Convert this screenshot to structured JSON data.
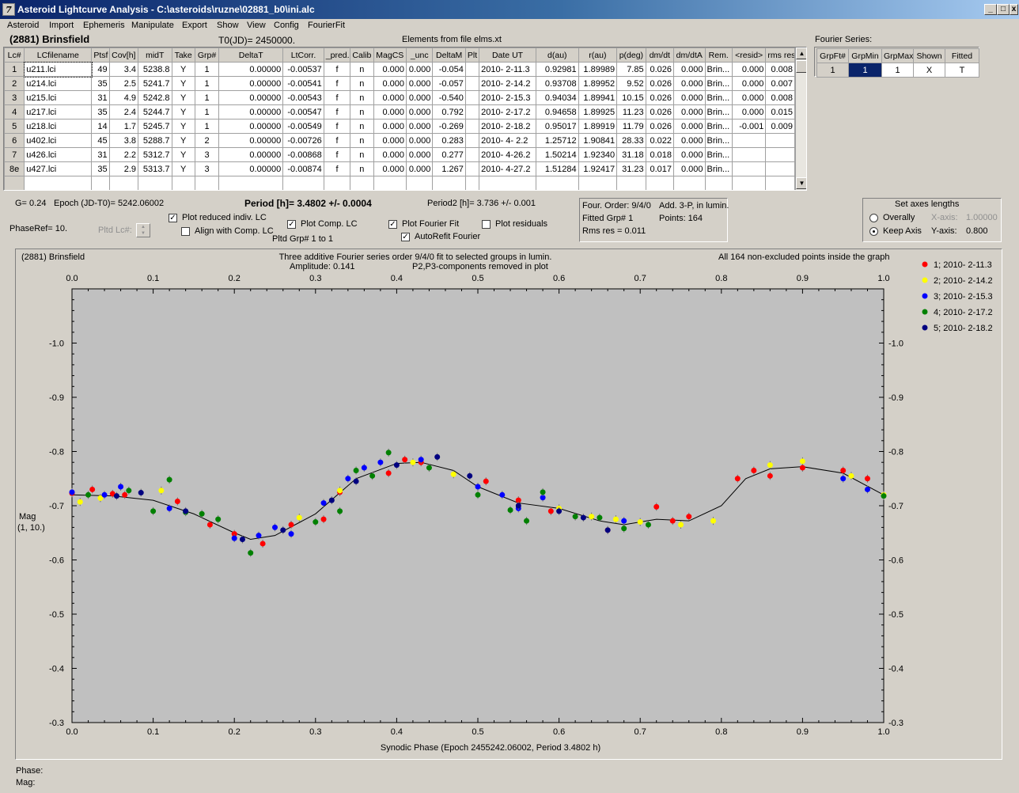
{
  "window": {
    "title": "Asteroid Lightcurve Analysis - C:\\asteroids\\ruzne\\02881_b0\\ini.alc",
    "icon": "app-icon",
    "min": "_",
    "max": "□",
    "close": "x"
  },
  "menu": [
    "Asteroid",
    "Import",
    "Ephemeris",
    "Manipulate",
    "Export",
    "Show",
    "View",
    "Config",
    "FourierFit"
  ],
  "header": {
    "asteroid": "(2881) Brinsfield",
    "t0": "T0(JD)= 2450000.",
    "elements": "Elements from file elms.xt"
  },
  "lc_table": {
    "columns": [
      "Lc#",
      "LCfilename",
      "Ptsf",
      "Cov[h]",
      "midT",
      "Take",
      "Grp#",
      "DeltaT",
      "LtCorr.",
      "_pred.",
      "Calib",
      "MagCS",
      "_unc",
      "DeltaM",
      "Plt",
      "Date UT",
      "d(au)",
      "r(au)",
      "p(deg)",
      "dm/dt",
      "dm/dtA",
      "Rem.",
      "<resid>",
      "rms res"
    ],
    "rows": [
      [
        "1",
        "u211.lci",
        "49",
        "3.4",
        "5238.8",
        "Y",
        "1",
        "0.00000",
        "-0.00537",
        "f",
        "n",
        "0.000",
        "0.000",
        "-0.054",
        "",
        "2010- 2-11.3",
        "0.92981",
        "1.89989",
        "7.85",
        "0.026",
        "0.000",
        "Brin...",
        "0.000",
        "0.008"
      ],
      [
        "2",
        "u214.lci",
        "35",
        "2.5",
        "5241.7",
        "Y",
        "1",
        "0.00000",
        "-0.00541",
        "f",
        "n",
        "0.000",
        "0.000",
        "-0.057",
        "",
        "2010- 2-14.2",
        "0.93708",
        "1.89952",
        "9.52",
        "0.026",
        "0.000",
        "Brin...",
        "0.000",
        "0.007"
      ],
      [
        "3",
        "u215.lci",
        "31",
        "4.9",
        "5242.8",
        "Y",
        "1",
        "0.00000",
        "-0.00543",
        "f",
        "n",
        "0.000",
        "0.000",
        "-0.540",
        "",
        "2010- 2-15.3",
        "0.94034",
        "1.89941",
        "10.15",
        "0.026",
        "0.000",
        "Brin...",
        "0.000",
        "0.008"
      ],
      [
        "4",
        "u217.lci",
        "35",
        "2.4",
        "5244.7",
        "Y",
        "1",
        "0.00000",
        "-0.00547",
        "f",
        "n",
        "0.000",
        "0.000",
        "0.792",
        "",
        "2010- 2-17.2",
        "0.94658",
        "1.89925",
        "11.23",
        "0.026",
        "0.000",
        "Brin...",
        "0.000",
        "0.015"
      ],
      [
        "5",
        "u218.lci",
        "14",
        "1.7",
        "5245.7",
        "Y",
        "1",
        "0.00000",
        "-0.00549",
        "f",
        "n",
        "0.000",
        "0.000",
        "-0.269",
        "",
        "2010- 2-18.2",
        "0.95017",
        "1.89919",
        "11.79",
        "0.026",
        "0.000",
        "Brin...",
        "-0.001",
        "0.009"
      ],
      [
        "6",
        "u402.lci",
        "45",
        "3.8",
        "5288.7",
        "Y",
        "2",
        "0.00000",
        "-0.00726",
        "f",
        "n",
        "0.000",
        "0.000",
        "0.283",
        "",
        "2010- 4- 2.2",
        "1.25712",
        "1.90841",
        "28.33",
        "0.022",
        "0.000",
        "Brin...",
        "",
        ""
      ],
      [
        "7",
        "u426.lci",
        "31",
        "2.2",
        "5312.7",
        "Y",
        "3",
        "0.00000",
        "-0.00868",
        "f",
        "n",
        "0.000",
        "0.000",
        "0.277",
        "",
        "2010- 4-26.2",
        "1.50214",
        "1.92340",
        "31.18",
        "0.018",
        "0.000",
        "Brin...",
        "",
        ""
      ],
      [
        "8e",
        "u427.lci",
        "35",
        "2.9",
        "5313.7",
        "Y",
        "3",
        "0.00000",
        "-0.00874",
        "f",
        "n",
        "0.000",
        "0.000",
        "1.267",
        "",
        "2010- 4-27.2",
        "1.51284",
        "1.92417",
        "31.23",
        "0.017",
        "0.000",
        "Brin...",
        "",
        ""
      ]
    ]
  },
  "fourier_series": {
    "title": "Fourier Series:",
    "columns": [
      "GrpFt#",
      "GrpMin",
      "GrpMax",
      "Shown",
      "Fitted"
    ],
    "row": [
      "1",
      "1",
      "1",
      "X",
      "T"
    ]
  },
  "info": {
    "g": "G= 0.24",
    "epoch": "Epoch (JD-T0)= 5242.06002",
    "period": "Period [h]= 3.4802 +/- 0.0004",
    "period2": "Period2 [h]= 3.736 +/- 0.001",
    "phaseref": "PhaseRef= 10.",
    "pltd_lc": "Pltd Lc#:",
    "pltd_grp": "Pltd Grp#  1   to   1"
  },
  "checks": {
    "plot_reduced": {
      "label": "Plot reduced indiv. LC",
      "checked": true
    },
    "align": {
      "label": "Align with Comp. LC",
      "checked": false
    },
    "plot_comp": {
      "label": "Plot Comp. LC",
      "checked": true
    },
    "plot_fourier": {
      "label": "Plot Fourier Fit",
      "checked": true
    },
    "autorefit": {
      "label": "AutoRefit Fourier",
      "checked": true
    },
    "plot_resid": {
      "label": "Plot residuals",
      "checked": false
    }
  },
  "fourier_info": {
    "order": "Four. Order:  9/4/0",
    "add": "Add. 3-P, in lumin.",
    "fitted": "Fitted Grp# 1",
    "points": "Points: 164",
    "rms": "Rms res     = 0.011"
  },
  "axes_box": {
    "title": "Set axes lengths",
    "overally": "Overally",
    "keep": "Keep Axis",
    "xaxis_label": "X-axis:",
    "xaxis_val": "1.00000",
    "yaxis_label": "Y-axis:",
    "yaxis_val": "0.800"
  },
  "plot": {
    "name": "(2881) Brinsfield",
    "note1": "Three additive Fourier series order 9/4/0 fit to selected groups in lumin.",
    "note2": "Amplitude: 0.141",
    "note3": "P2,P3-components removed in plot",
    "note4": "All 164 non-excluded points inside the graph",
    "ylabel1": "Mag",
    "ylabel2": "(1, 10.)",
    "xlabel": "Synodic Phase (Epoch 2455242.06002, Period 3.4802 h)"
  },
  "chart_data": {
    "type": "scatter",
    "x_range": [
      0,
      1
    ],
    "y_range": [
      -1.1,
      -0.3
    ],
    "y_reversed": true,
    "x_ticks": [
      "0.0",
      "0.1",
      "0.2",
      "0.3",
      "0.4",
      "0.5",
      "0.6",
      "0.7",
      "0.8",
      "0.9",
      "1.0"
    ],
    "y_ticks": [
      "-1.0",
      "-0.9",
      "-0.8",
      "-0.7",
      "-0.6",
      "-0.5",
      "-0.4",
      "-0.3"
    ],
    "legend_position": "right",
    "series": [
      {
        "name": "1; 2010- 2-11.3",
        "color": "#ff0000",
        "points": [
          [
            0.0,
            -0.723
          ],
          [
            0.025,
            -0.73
          ],
          [
            0.05,
            -0.722
          ],
          [
            0.065,
            -0.72
          ],
          [
            0.13,
            -0.708
          ],
          [
            0.17,
            -0.665
          ],
          [
            0.2,
            -0.648
          ],
          [
            0.235,
            -0.63
          ],
          [
            0.27,
            -0.665
          ],
          [
            0.31,
            -0.675
          ],
          [
            0.33,
            -0.725
          ],
          [
            0.39,
            -0.76
          ],
          [
            0.41,
            -0.785
          ],
          [
            0.43,
            -0.78
          ],
          [
            0.51,
            -0.745
          ],
          [
            0.55,
            -0.71
          ],
          [
            0.59,
            -0.69
          ],
          [
            0.66,
            -0.655
          ],
          [
            0.72,
            -0.698
          ],
          [
            0.74,
            -0.672
          ],
          [
            0.76,
            -0.68
          ],
          [
            0.82,
            -0.75
          ],
          [
            0.84,
            -0.765
          ],
          [
            0.86,
            -0.755
          ],
          [
            0.9,
            -0.77
          ],
          [
            0.95,
            -0.765
          ],
          [
            0.98,
            -0.75
          ]
        ]
      },
      {
        "name": "2; 2010- 2-14.2",
        "color": "#ffff00",
        "points": [
          [
            0.01,
            -0.707
          ],
          [
            0.035,
            -0.714
          ],
          [
            0.11,
            -0.728
          ],
          [
            0.28,
            -0.678
          ],
          [
            0.33,
            -0.728
          ],
          [
            0.42,
            -0.78
          ],
          [
            0.47,
            -0.758
          ],
          [
            0.6,
            -0.695
          ],
          [
            0.64,
            -0.68
          ],
          [
            0.67,
            -0.675
          ],
          [
            0.7,
            -0.67
          ],
          [
            0.75,
            -0.665
          ],
          [
            0.79,
            -0.672
          ],
          [
            0.86,
            -0.775
          ],
          [
            0.9,
            -0.782
          ],
          [
            0.96,
            -0.755
          ],
          [
            1.0,
            -0.72
          ]
        ]
      },
      {
        "name": "3; 2010- 2-15.3",
        "color": "#0000ff",
        "points": [
          [
            0.0,
            -0.725
          ],
          [
            0.04,
            -0.72
          ],
          [
            0.06,
            -0.735
          ],
          [
            0.12,
            -0.695
          ],
          [
            0.2,
            -0.64
          ],
          [
            0.23,
            -0.645
          ],
          [
            0.25,
            -0.66
          ],
          [
            0.27,
            -0.648
          ],
          [
            0.31,
            -0.705
          ],
          [
            0.34,
            -0.75
          ],
          [
            0.36,
            -0.77
          ],
          [
            0.38,
            -0.78
          ],
          [
            0.43,
            -0.785
          ],
          [
            0.5,
            -0.735
          ],
          [
            0.53,
            -0.72
          ],
          [
            0.55,
            -0.695
          ],
          [
            0.58,
            -0.715
          ],
          [
            0.68,
            -0.672
          ],
          [
            0.95,
            -0.75
          ],
          [
            0.98,
            -0.73
          ]
        ]
      },
      {
        "name": "4; 2010- 2-17.2",
        "color": "#008000",
        "points": [
          [
            0.02,
            -0.72
          ],
          [
            0.07,
            -0.728
          ],
          [
            0.1,
            -0.69
          ],
          [
            0.12,
            -0.748
          ],
          [
            0.14,
            -0.688
          ],
          [
            0.16,
            -0.685
          ],
          [
            0.18,
            -0.675
          ],
          [
            0.22,
            -0.613
          ],
          [
            0.3,
            -0.67
          ],
          [
            0.33,
            -0.69
          ],
          [
            0.35,
            -0.765
          ],
          [
            0.37,
            -0.755
          ],
          [
            0.39,
            -0.798
          ],
          [
            0.44,
            -0.77
          ],
          [
            0.5,
            -0.72
          ],
          [
            0.54,
            -0.692
          ],
          [
            0.56,
            -0.672
          ],
          [
            0.58,
            -0.725
          ],
          [
            0.62,
            -0.68
          ],
          [
            0.65,
            -0.678
          ],
          [
            0.68,
            -0.658
          ],
          [
            0.71,
            -0.665
          ],
          [
            1.0,
            -0.718
          ]
        ]
      },
      {
        "name": "5; 2010- 2-18.2",
        "color": "#000080",
        "points": [
          [
            0.055,
            -0.718
          ],
          [
            0.085,
            -0.724
          ],
          [
            0.14,
            -0.69
          ],
          [
            0.21,
            -0.638
          ],
          [
            0.26,
            -0.655
          ],
          [
            0.32,
            -0.71
          ],
          [
            0.35,
            -0.745
          ],
          [
            0.4,
            -0.775
          ],
          [
            0.45,
            -0.79
          ],
          [
            0.49,
            -0.755
          ],
          [
            0.55,
            -0.7
          ],
          [
            0.6,
            -0.69
          ],
          [
            0.63,
            -0.678
          ],
          [
            0.66,
            -0.655
          ]
        ]
      }
    ],
    "fit_curve": [
      [
        0.0,
        -0.72
      ],
      [
        0.05,
        -0.718
      ],
      [
        0.1,
        -0.71
      ],
      [
        0.15,
        -0.685
      ],
      [
        0.2,
        -0.65
      ],
      [
        0.22,
        -0.638
      ],
      [
        0.25,
        -0.645
      ],
      [
        0.3,
        -0.685
      ],
      [
        0.35,
        -0.75
      ],
      [
        0.4,
        -0.778
      ],
      [
        0.43,
        -0.78
      ],
      [
        0.47,
        -0.765
      ],
      [
        0.5,
        -0.735
      ],
      [
        0.55,
        -0.705
      ],
      [
        0.6,
        -0.695
      ],
      [
        0.65,
        -0.672
      ],
      [
        0.68,
        -0.665
      ],
      [
        0.72,
        -0.675
      ],
      [
        0.76,
        -0.672
      ],
      [
        0.8,
        -0.7
      ],
      [
        0.83,
        -0.75
      ],
      [
        0.86,
        -0.768
      ],
      [
        0.9,
        -0.772
      ],
      [
        0.95,
        -0.76
      ],
      [
        1.0,
        -0.72
      ]
    ]
  }
}
